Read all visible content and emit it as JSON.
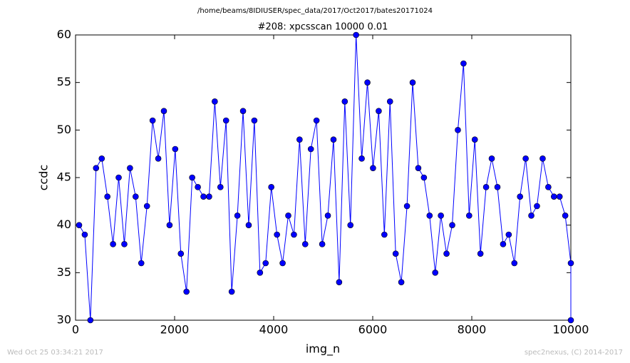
{
  "chart_data": {
    "type": "line",
    "suptitle": "/home/beams/8IDIUSER/spec_data/2017/Oct2017/bates20171024",
    "title": "#208: xpcsscan 10000 0.01",
    "xlabel": "img_n",
    "ylabel": "ccdc",
    "x": [
      72,
      186,
      300,
      414,
      529,
      643,
      757,
      871,
      985,
      1099,
      1213,
      1327,
      1442,
      1556,
      1670,
      1784,
      1898,
      2012,
      2126,
      2240,
      2355,
      2469,
      2583,
      2697,
      2811,
      2925,
      3039,
      3153,
      3268,
      3382,
      3496,
      3610,
      3724,
      3838,
      3952,
      4067,
      4181,
      4295,
      4409,
      4523,
      4637,
      4751,
      4865,
      4980,
      5094,
      5208,
      5322,
      5436,
      5550,
      5664,
      5778,
      5893,
      6006,
      6121,
      6235,
      6349,
      6463,
      6577,
      6692,
      6806,
      6920,
      7034,
      7148,
      7262,
      7376,
      7490,
      7605,
      7719,
      7833,
      7947,
      8061,
      8175,
      8289,
      8403,
      8518,
      8632,
      8746,
      8860,
      8974,
      9088,
      9202,
      9316,
      9431,
      9545,
      9659,
      9773,
      9887,
      10000,
      10000
    ],
    "series": [
      {
        "name": "ccdc",
        "color": "#0000ff",
        "values": [
          40,
          39,
          30,
          46,
          47,
          43,
          38,
          45,
          38,
          46,
          43,
          36,
          42,
          51,
          47,
          52,
          40,
          48,
          37,
          33,
          45,
          44,
          43,
          43,
          53,
          44,
          51,
          33,
          41,
          52,
          40,
          51,
          35,
          36,
          44,
          39,
          36,
          41,
          39,
          49,
          38,
          48,
          51,
          38,
          41,
          49,
          34,
          53,
          40,
          60,
          47,
          55,
          46,
          52,
          39,
          53,
          37,
          34,
          42,
          55,
          46,
          45,
          41,
          35,
          41,
          37,
          40,
          50,
          57,
          41,
          49,
          37,
          44,
          47,
          44,
          38,
          39,
          36,
          43,
          47,
          41,
          42,
          47,
          44,
          43,
          43,
          41,
          36,
          30
        ]
      }
    ],
    "xlim": [
      0,
      10000
    ],
    "xticks": [
      0,
      2000,
      4000,
      6000,
      8000,
      10000
    ],
    "ylim": [
      30,
      60
    ],
    "yticks": [
      30,
      35,
      40,
      45,
      50,
      55,
      60
    ]
  },
  "footer": {
    "left": "Wed Oct 25 03:34:21 2017",
    "right": "spec2nexus, (C) 2014-2017"
  }
}
